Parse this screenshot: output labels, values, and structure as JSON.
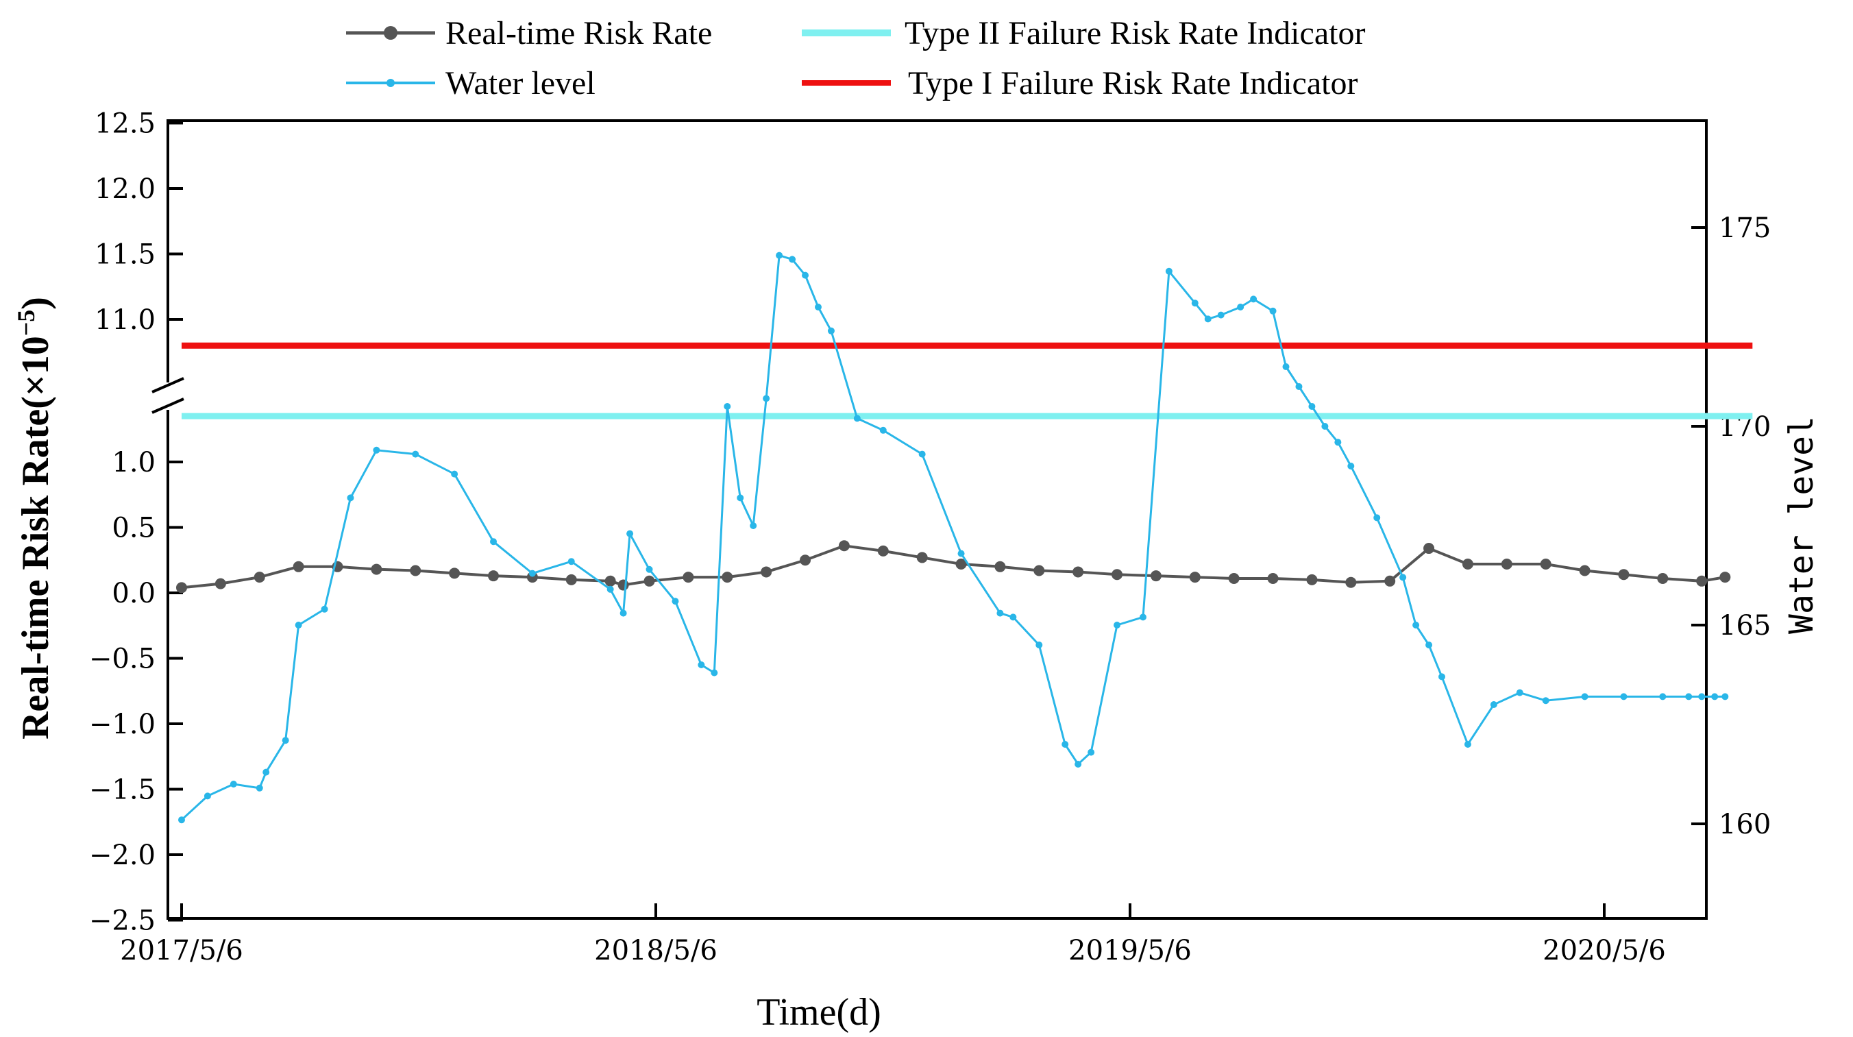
{
  "chart_data": {
    "type": "line",
    "x_axis": {
      "label": "Time(d)",
      "tick_labels": [
        "2017/5/6",
        "2018/5/6",
        "2019/5/6",
        "2020/5/6"
      ],
      "range_days": [
        0,
        1188
      ]
    },
    "y_left": {
      "label_main": "Real-time Risk Rate(×10",
      "label_exp": "−5",
      "label_close": ")",
      "lower_ticks": [
        "−2.5",
        "−2.0",
        "−1.5",
        "−1.0",
        "−0.5",
        "0.0",
        "0.5",
        "1.0"
      ],
      "upper_ticks": [
        "11.0",
        "11.5",
        "12.0",
        "12.5"
      ],
      "lower_range": [
        -2.5,
        1.5
      ],
      "upper_range": [
        10.6,
        12.5
      ],
      "break_between": [
        1.5,
        10.6
      ]
    },
    "y_right": {
      "label": "Water level",
      "ticks": [
        "160",
        "165",
        "170",
        "175"
      ],
      "range": [
        157.5,
        177.5
      ]
    },
    "legend": {
      "risk": "Real-time Risk Rate",
      "water": "Water level",
      "type2": "Type II Failure Risk Rate Indicator",
      "type1": "Type I Failure Risk Rate Indicator"
    },
    "colors": {
      "risk": "#555555",
      "water": "#29b6e8",
      "type2": "#7ff0f0",
      "type1": "#ee1111"
    },
    "series": [
      {
        "name": "Type I Failure Risk Rate Indicator",
        "axis": "left-upper",
        "value": 10.8
      },
      {
        "name": "Type II Failure Risk Rate Indicator",
        "axis": "left-lower",
        "value": 1.35
      },
      {
        "name": "Real-time Risk Rate",
        "axis": "left-lower",
        "x": [
          0,
          30,
          60,
          90,
          120,
          150,
          180,
          210,
          240,
          270,
          300,
          330,
          340,
          360,
          390,
          420,
          450,
          480,
          510,
          540,
          570,
          600,
          630,
          660,
          690,
          720,
          750,
          780,
          810,
          840,
          870,
          900,
          930,
          960,
          990,
          1020,
          1050,
          1080,
          1110,
          1140,
          1170,
          1188
        ],
        "y": [
          0.04,
          0.07,
          0.12,
          0.2,
          0.2,
          0.18,
          0.17,
          0.15,
          0.13,
          0.12,
          0.1,
          0.09,
          0.06,
          0.09,
          0.12,
          0.12,
          0.16,
          0.25,
          0.36,
          0.32,
          0.27,
          0.22,
          0.2,
          0.17,
          0.16,
          0.14,
          0.13,
          0.12,
          0.11,
          0.11,
          0.1,
          0.08,
          0.09,
          0.34,
          0.22,
          0.22,
          0.22,
          0.17,
          0.14,
          0.11,
          0.09,
          0.12
        ]
      },
      {
        "name": "Water level",
        "axis": "right",
        "x": [
          0,
          20,
          40,
          60,
          65,
          80,
          90,
          110,
          130,
          150,
          180,
          210,
          240,
          270,
          300,
          330,
          340,
          345,
          360,
          380,
          400,
          410,
          420,
          430,
          440,
          450,
          460,
          470,
          480,
          490,
          500,
          520,
          540,
          570,
          600,
          630,
          640,
          660,
          680,
          690,
          700,
          720,
          740,
          760,
          780,
          790,
          800,
          815,
          825,
          840,
          850,
          860,
          870,
          880,
          890,
          900,
          920,
          940,
          950,
          960,
          970,
          990,
          1010,
          1030,
          1050,
          1080,
          1110,
          1140,
          1160,
          1170,
          1180,
          1188
        ],
        "y": [
          160.1,
          160.7,
          161.0,
          160.9,
          161.3,
          162.1,
          165.0,
          165.4,
          168.2,
          169.4,
          169.3,
          168.8,
          167.1,
          166.3,
          166.6,
          165.9,
          165.3,
          167.3,
          166.4,
          165.6,
          164.0,
          163.8,
          170.5,
          168.2,
          167.5,
          170.7,
          174.3,
          174.2,
          173.8,
          173.0,
          172.4,
          170.2,
          169.9,
          169.3,
          166.8,
          165.3,
          165.2,
          164.5,
          162.0,
          161.5,
          161.8,
          165.0,
          165.2,
          173.9,
          173.1,
          172.7,
          172.8,
          173.0,
          173.2,
          172.9,
          171.5,
          171.0,
          170.5,
          170.0,
          169.6,
          169.0,
          167.7,
          166.2,
          165.0,
          164.5,
          163.7,
          162.0,
          163.0,
          163.3,
          163.1,
          163.2,
          163.2,
          163.2,
          163.2,
          163.2,
          163.2,
          163.2
        ]
      }
    ]
  }
}
